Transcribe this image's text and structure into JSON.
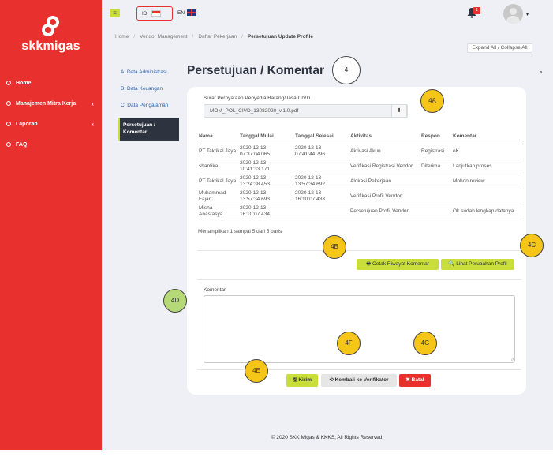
{
  "brand": {
    "name": "skkmigas"
  },
  "sidebar": {
    "items": [
      {
        "label": "Home",
        "has_chevron": false
      },
      {
        "label": "Manajemen Mitra Kerja",
        "has_chevron": true,
        "chevron": "‹"
      },
      {
        "label": "Laporan",
        "has_chevron": true,
        "chevron": "‹"
      },
      {
        "label": "FAQ",
        "has_chevron": false
      }
    ]
  },
  "topbar": {
    "menu_icon": "≡",
    "lang_id": "ID",
    "lang_en": "EN",
    "notification_count": "1",
    "avatar_caret": "▾"
  },
  "breadcrumb": [
    "Home",
    "Vendor Management",
    "Daftar Pekerjaan",
    "Persetujuan Update Profile"
  ],
  "expand_all_label": "Expand All / Collapse All",
  "steps": [
    "A. Data Administrasi",
    "B. Data Keuangan",
    "C. Data Pengalaman",
    "Persetujuan / Komentar"
  ],
  "page_title": "Persetujuan / Komentar",
  "collapse_caret": "^",
  "card": {
    "file_label": "Surat Pernyataan Penyedia Barang/Jasa CIVD",
    "file_name": "MOM_POL_CIVD_13082020_v.1.0.pdf",
    "download_icon": "⬇",
    "table": {
      "headers": [
        "Nama",
        "Tanggal Mulai",
        "Tanggal Selesai",
        "Aktivitas",
        "Respon",
        "Komentar"
      ],
      "rows": [
        [
          "PT Taktikal Jaya",
          "2020-12-13 07:37:04.065",
          "2020-12-13 07:41:44.796",
          "Aktivasi Akun",
          "Registrasi",
          "oK"
        ],
        [
          "shantika",
          "2020-12-13 10:41:33.171",
          "",
          "Verifikasi Registrasi Vendor",
          "Diterima",
          "Lanjutkan proses"
        ],
        [
          "PT Taktikal Jaya",
          "2020-12-13 13:24:38.453",
          "2020-12-13 13:57:34.692",
          "Alokasi Pekerjaan",
          "",
          "Mohon review"
        ],
        [
          "Muhammad Fajar",
          "2020-12-13 13:57:34.693",
          "2020-12-13 16:10:07.433",
          "Verifikasi Profil Vendor",
          "",
          ""
        ],
        [
          "Misha Anastasya",
          "2020-12-13 16:10:07.434",
          "",
          "Persetujuan Profil Vendor",
          "",
          "Ok sudah lengkap datanya"
        ]
      ]
    },
    "rows_info": "Menampilkan 1 sampai 5 dari 5 baris",
    "btn_cetak": "🖶 Cetak Riwayat Komentar",
    "btn_lihat": "🔍 Lihat Perubahan Profil",
    "komentar_label": "Komentar",
    "btn_kirim": "🖫 Kirim",
    "btn_kembali": "⟲ Kembali ke Verifikator",
    "btn_batal": "✖ Batal"
  },
  "callouts": [
    "4",
    "4A",
    "4B",
    "4C",
    "4D",
    "4E",
    "4F",
    "4G"
  ],
  "footer": "© 2020 SKK Migas & KKKS, All Rights Reserved.",
  "colors": {
    "sidebar": "#e8312f",
    "accent": "#c9de3b",
    "danger": "#e8312f",
    "callout_yellow": "#f5c518",
    "callout_green": "#b6d977"
  }
}
